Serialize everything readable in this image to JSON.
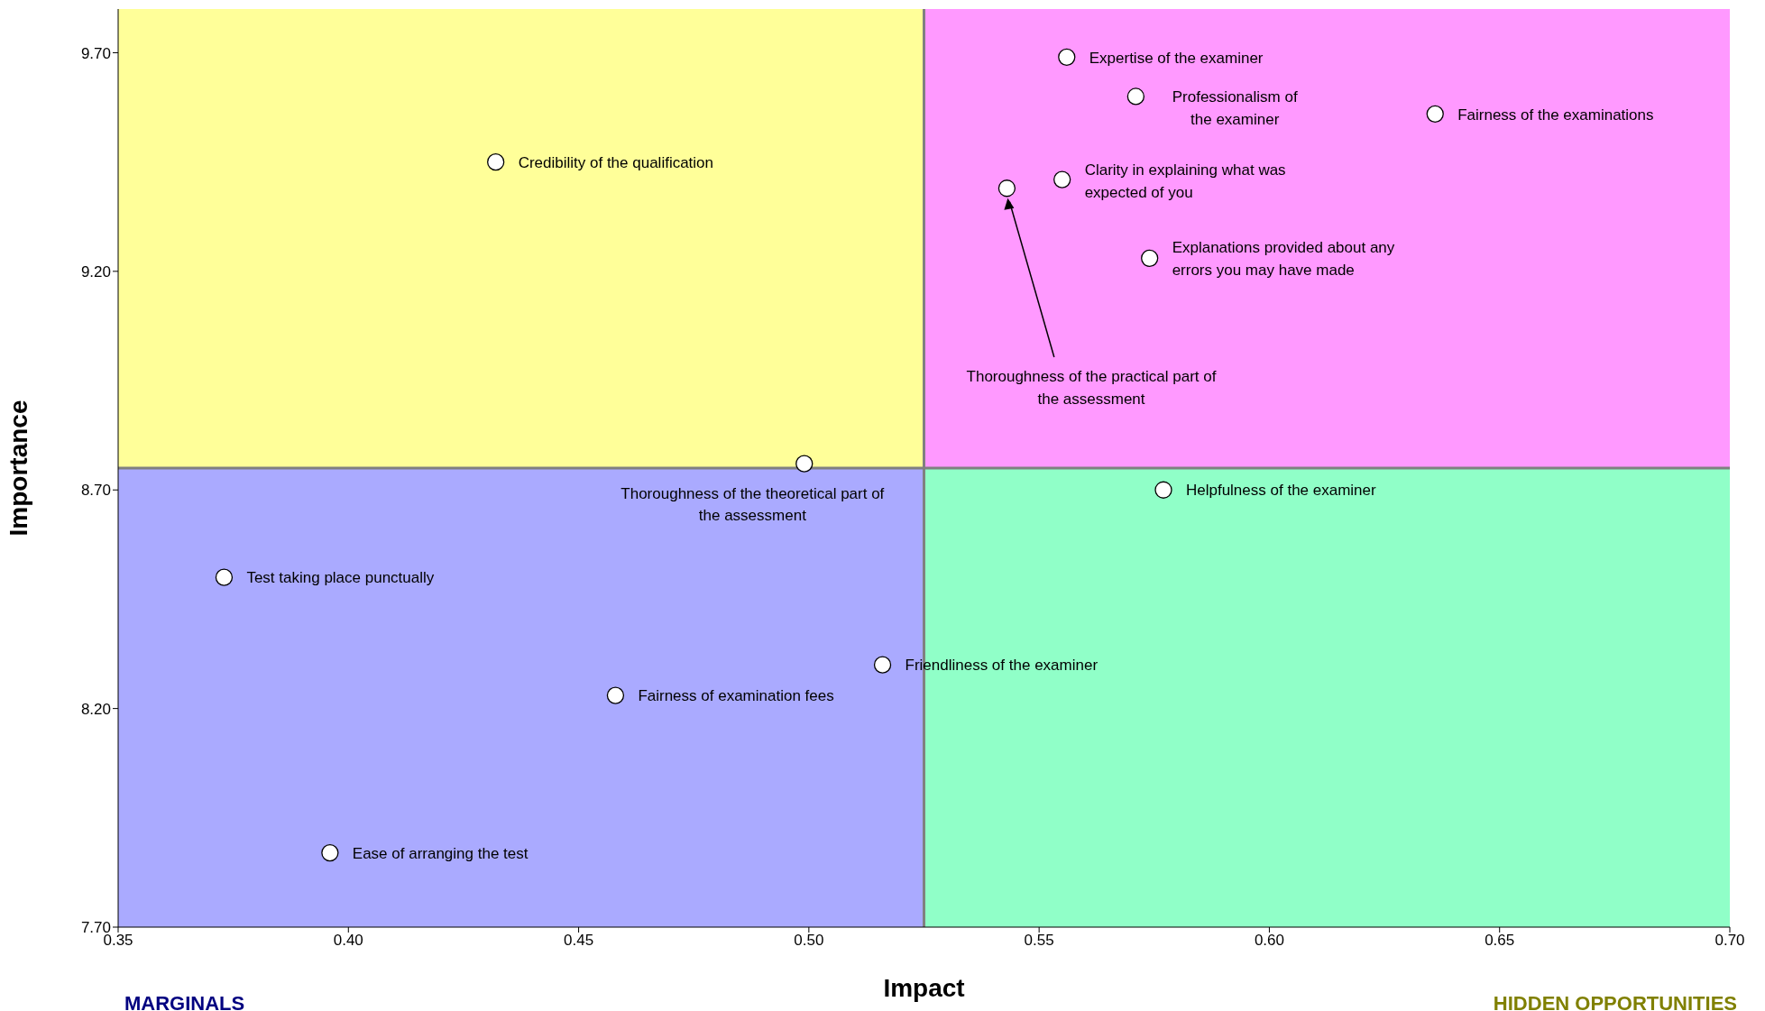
{
  "chart_data": {
    "type": "scatter",
    "xlabel": "Impact",
    "ylabel": "Importance",
    "x": [
      0.556,
      0.571,
      0.636,
      0.432,
      0.555,
      0.543,
      0.574,
      0.499,
      0.577,
      0.373,
      0.516,
      0.458,
      0.396
    ],
    "values": [
      9.69,
      9.6,
      9.56,
      9.45,
      9.41,
      9.39,
      9.23,
      8.76,
      8.7,
      8.5,
      8.3,
      8.23,
      7.87
    ],
    "value_labels": [
      "Expertise of the examiner",
      "Professionalism of\nthe examiner",
      "Fairness of the examinations",
      "Credibility of the qualification",
      "Clarity in explaining what was\nexpected of you",
      "Thoroughness of the practical part of\nthe assessment",
      "Explanations provided about any\nerrors you may have made",
      "Thoroughness of the theoretical part of\nthe assessment",
      "Helpfulness of the examiner",
      "Test taking place punctually",
      "Friendliness of the examiner",
      "Fairness of examination fees",
      "Ease of arranging the test"
    ],
    "color": "#ffffff",
    "marker": "circle",
    "grid": false,
    "legend": false,
    "xlim": [
      0.35,
      0.7
    ],
    "xticks": [
      {
        "value": 0.35,
        "label": "0.35"
      },
      {
        "value": 0.4,
        "label": "0.40"
      },
      {
        "value": 0.45,
        "label": "0.45"
      },
      {
        "value": 0.5,
        "label": "0.50"
      },
      {
        "value": 0.55,
        "label": "0.55"
      },
      {
        "value": 0.6,
        "label": "0.60"
      },
      {
        "value": 0.65,
        "label": "0.65"
      },
      {
        "value": 0.7,
        "label": "0.70"
      }
    ],
    "ylim": [
      7.7,
      9.8
    ],
    "yticks": [
      {
        "value": 7.7,
        "label": "7.70"
      },
      {
        "value": 8.2,
        "label": "8.20"
      },
      {
        "value": 8.7,
        "label": "8.70"
      },
      {
        "value": 9.2,
        "label": "9.20"
      },
      {
        "value": 9.7,
        "label": "9.70"
      }
    ],
    "bands": [
      {
        "axis": "x",
        "from": 0.35,
        "to": 0.525,
        "color": "#ffff99"
      },
      {
        "axis": "x",
        "from": 0.525,
        "to": 0.7,
        "color": "#ff99ff"
      },
      {
        "axis": "x",
        "from": 0.35,
        "to": 0.525,
        "color": "#aaaaff"
      },
      {
        "axis": "x",
        "from": 0.525,
        "to": 0.7,
        "color": "#90ffc8"
      }
    ],
    "ref_lines": [
      {
        "axis": "x",
        "value": 0.525,
        "color": "#808080"
      },
      {
        "axis": "y",
        "value": 8.75,
        "color": "#808080"
      }
    ],
    "annotations": [
      "MARGINALS",
      "HIDDEN OPPORTUNITIES"
    ]
  }
}
